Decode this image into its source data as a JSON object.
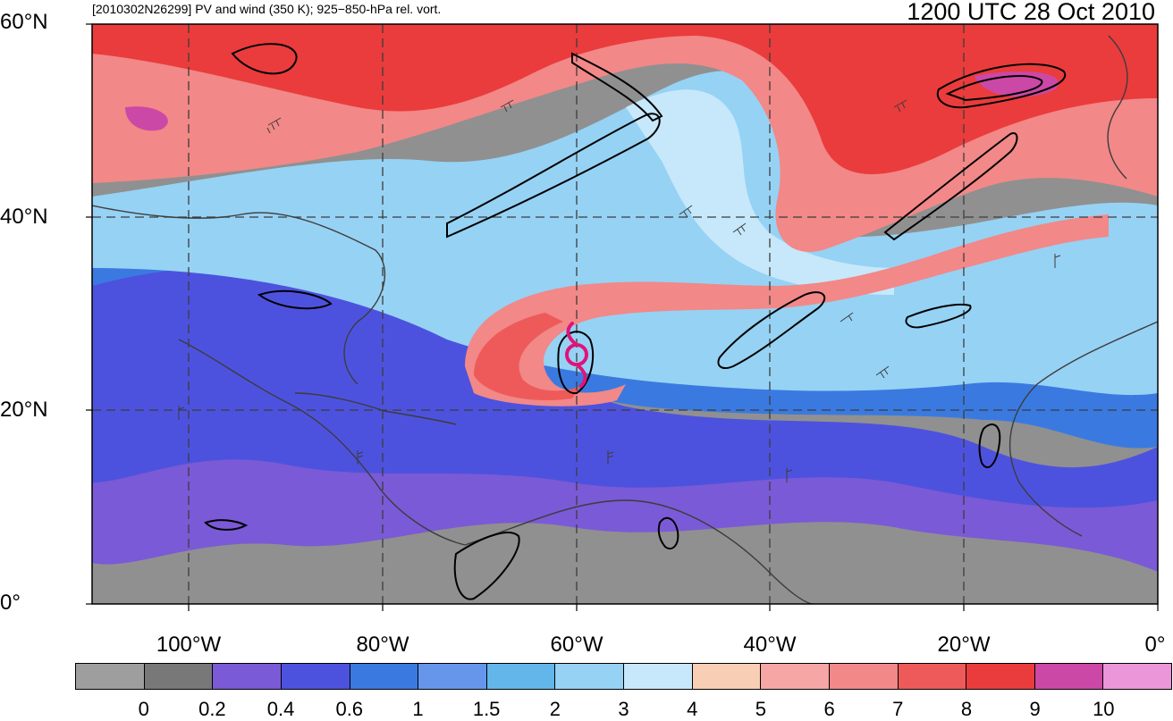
{
  "header": {
    "left_title": "[2010302N26299] PV and wind (350 K); 925−850-hPa rel. vort.",
    "right_title": "1200 UTC 28 Oct 2010"
  },
  "axes": {
    "lat_labels": [
      "60°N",
      "40°N",
      "20°N",
      "0°"
    ],
    "lon_labels": [
      "100°W",
      "80°W",
      "60°W",
      "40°W",
      "20°W",
      "0°"
    ]
  },
  "colorbar": {
    "labels": [
      "0",
      "0.2",
      "0.4",
      "0.6",
      "1",
      "1.5",
      "2",
      "3",
      "4",
      "5",
      "6",
      "7",
      "8",
      "9",
      "10"
    ],
    "colors": [
      "#9e9e9e",
      "#787878",
      "#7a5ad6",
      "#4d52de",
      "#3a7ae0",
      "#6696ec",
      "#62b6ea",
      "#96d2f4",
      "#c6e8fa",
      "#f8cfb4",
      "#f6a6a4",
      "#f28888",
      "#ee5a5a",
      "#ea3c3c",
      "#cc48a6",
      "#ea96d8"
    ]
  },
  "storm_symbol": {
    "name": "tropical-cyclone-icon",
    "color": "#e0137a"
  },
  "palette": {
    "land_line": "#3c3c3c",
    "grid_line": "#3c3c3c",
    "contour": "#000000"
  }
}
